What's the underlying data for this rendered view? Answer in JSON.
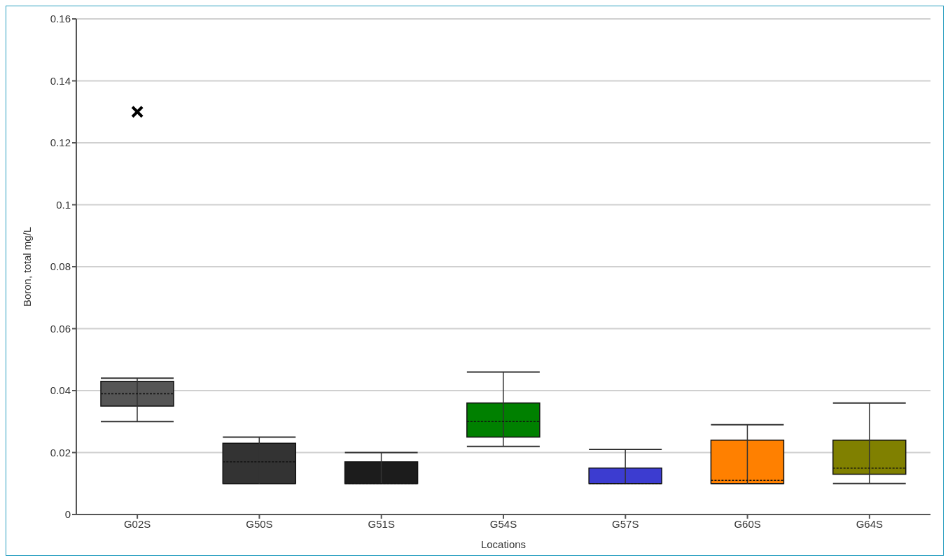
{
  "chart_data": {
    "type": "box",
    "xlabel": "Locations",
    "ylabel": "Boron, total mg/L",
    "categories": [
      "G02S",
      "G50S",
      "G51S",
      "G54S",
      "G57S",
      "G60S",
      "G64S"
    ],
    "colors": [
      "#555555",
      "#333333",
      "#1c1c1c",
      "#008000",
      "#3c3cd0",
      "#ff8000",
      "#808000"
    ],
    "boxes": [
      {
        "low": 0.03,
        "q1": 0.035,
        "median": 0.039,
        "q3": 0.043,
        "high": 0.044,
        "outliers": [
          0.13
        ]
      },
      {
        "low": 0.01,
        "q1": 0.01,
        "median": 0.017,
        "q3": 0.023,
        "high": 0.025
      },
      {
        "low": 0.01,
        "q1": 0.01,
        "median": 0.01,
        "q3": 0.017,
        "high": 0.02
      },
      {
        "low": 0.022,
        "q1": 0.025,
        "median": 0.03,
        "q3": 0.036,
        "high": 0.046
      },
      {
        "low": 0.01,
        "q1": 0.01,
        "median": 0.01,
        "q3": 0.015,
        "high": 0.021
      },
      {
        "low": 0.01,
        "q1": 0.01,
        "median": 0.011,
        "q3": 0.024,
        "high": 0.029
      },
      {
        "low": 0.01,
        "q1": 0.013,
        "median": 0.015,
        "q3": 0.024,
        "high": 0.036
      }
    ],
    "ylim": [
      0,
      0.16
    ],
    "yticks": [
      0,
      0.02,
      0.04,
      0.06,
      0.08,
      0.1,
      0.12,
      0.14,
      0.16
    ],
    "grid": "y",
    "marker": "cross"
  }
}
